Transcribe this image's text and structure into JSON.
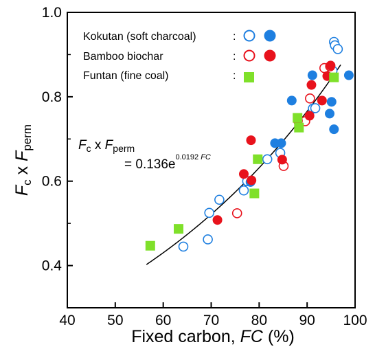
{
  "chart_data": {
    "type": "scatter",
    "xlabel": {
      "prefix": "Fixed carbon, ",
      "symbol": "FC",
      "suffix": " (%)"
    },
    "ylabel": {
      "a": "F",
      "a_sub": "c",
      "mid": " x ",
      "b": "F",
      "b_sub": "perm"
    },
    "xlim": [
      40,
      100
    ],
    "ylim": [
      0.3,
      1.0
    ],
    "x_ticks": [
      40,
      50,
      60,
      70,
      80,
      90,
      100
    ],
    "y_ticks": [
      0.4,
      0.6,
      0.8,
      1.0
    ],
    "y_tick_labels": [
      "0.4",
      "0.6",
      "0.8",
      "1.0"
    ],
    "grid": false,
    "legend": {
      "position": "top-left",
      "entries": [
        {
          "label": "Kokutan (soft charcoal)",
          "separator": ":"
        },
        {
          "label": "Bamboo biochar",
          "separator": ":"
        },
        {
          "label": "Funtan (fine coal)",
          "separator": ":"
        }
      ]
    },
    "equation": {
      "line1": {
        "a": "F",
        "a_sub": "c",
        "mid": " x ",
        "b": "F",
        "b_sub": "perm"
      },
      "line2": {
        "prefix": "= 0.136e",
        "exp_num": "0.0192 ",
        "exp_var": "FC"
      }
    },
    "fit_curve": {
      "a": 0.136,
      "b": 0.0192,
      "x_range": [
        56.5,
        97
      ]
    },
    "colors": {
      "kokutan": "#1e7fe0",
      "bamboo": "#e8121c",
      "funtan": "#7fe02a",
      "fit": "#000000"
    },
    "series": [
      {
        "name": "Kokutan (soft charcoal)",
        "marker": "circle",
        "fill": "open",
        "points": [
          [
            64.2,
            0.445
          ],
          [
            69.3,
            0.462
          ],
          [
            69.6,
            0.525
          ],
          [
            71.7,
            0.556
          ],
          [
            76.8,
            0.578
          ],
          [
            77.5,
            0.6
          ],
          [
            81.7,
            0.652
          ],
          [
            84.4,
            0.667
          ],
          [
            91.2,
            0.772
          ],
          [
            91.7,
            0.773
          ],
          [
            95.3,
            0.862
          ],
          [
            95.6,
            0.93
          ],
          [
            95.8,
            0.922
          ],
          [
            96.4,
            0.913
          ]
        ]
      },
      {
        "name": "Kokutan (soft charcoal)",
        "marker": "circle",
        "fill": "filled",
        "points": [
          [
            78.2,
            0.598
          ],
          [
            83.3,
            0.69
          ],
          [
            84.6,
            0.69
          ],
          [
            86.8,
            0.791
          ],
          [
            91.1,
            0.851
          ],
          [
            94.7,
            0.76
          ],
          [
            95.1,
            0.788
          ],
          [
            95.6,
            0.723
          ],
          [
            98.7,
            0.851
          ]
        ]
      },
      {
        "name": "Bamboo biochar",
        "marker": "circle",
        "fill": "open",
        "points": [
          [
            75.4,
            0.524
          ],
          [
            85.1,
            0.636
          ],
          [
            89.6,
            0.742
          ],
          [
            90.6,
            0.796
          ],
          [
            93.6,
            0.868
          ],
          [
            94.8,
            0.872
          ]
        ]
      },
      {
        "name": "Bamboo biochar",
        "marker": "circle",
        "fill": "filled",
        "points": [
          [
            71.3,
            0.508
          ],
          [
            76.8,
            0.617
          ],
          [
            78.4,
            0.602
          ],
          [
            78.3,
            0.697
          ],
          [
            84.8,
            0.651
          ],
          [
            88.1,
            0.743
          ],
          [
            90.5,
            0.755
          ],
          [
            90.9,
            0.828
          ],
          [
            93.1,
            0.791
          ],
          [
            94.2,
            0.849
          ],
          [
            94.9,
            0.874
          ]
        ]
      },
      {
        "name": "Funtan (fine coal)",
        "marker": "square",
        "fill": "filled",
        "points": [
          [
            57.3,
            0.447
          ],
          [
            63.2,
            0.487
          ],
          [
            79.0,
            0.571
          ],
          [
            79.7,
            0.652
          ],
          [
            88.0,
            0.75
          ],
          [
            88.3,
            0.727
          ],
          [
            95.6,
            0.846
          ]
        ]
      }
    ]
  }
}
